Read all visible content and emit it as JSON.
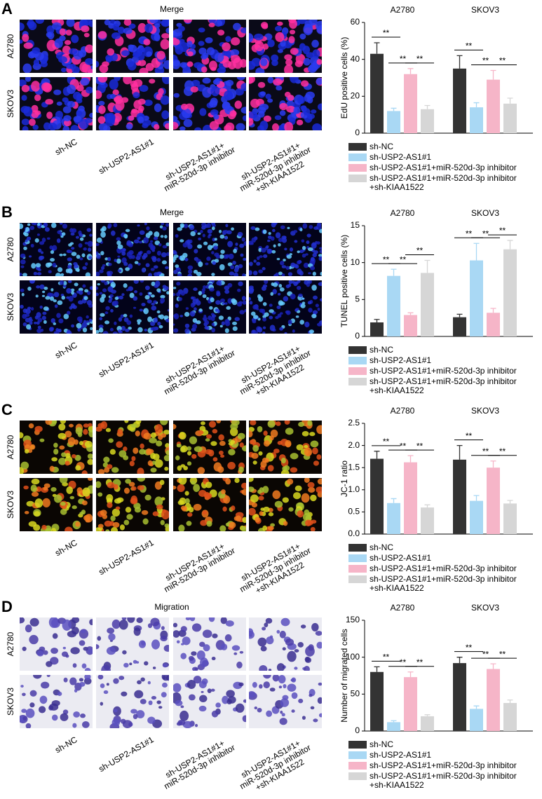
{
  "panels": [
    {
      "label": "A",
      "title": "Merge",
      "rows": [
        "A2780",
        "SKOV3"
      ],
      "columns": [
        "sh-NC",
        "sh-USP2-AS1#1",
        "sh-USP2-AS1#1+\nmiR-520d-3p inhibitor",
        "sh-USP2-AS1#1+\nmiR-520d-3p inhibitor\n+sh-KIAA1522"
      ]
    },
    {
      "label": "B",
      "title": "Merge",
      "rows": [
        "A2780",
        "SKOV3"
      ],
      "columns": [
        "sh-NC",
        "sh-USP2-AS1#1",
        "sh-USP2-AS1#1+\nmiR-520d-3p inhibitor",
        "sh-USP2-AS1#1+\nmiR-520d-3p inhibitor\n+sh-KIAA1522"
      ]
    },
    {
      "label": "C",
      "rows": [
        "A2780",
        "SKOV3"
      ],
      "columns": [
        "sh-NC",
        "sh-USP2-AS1#1",
        "sh-USP2-AS1#1+\nmiR-520d-3p inhibitor",
        "sh-USP2-AS1#1+\nmiR-520d-3p inhibitor\n+sh-KIAA1522"
      ]
    },
    {
      "label": "D",
      "title": "Migration",
      "rows": [
        "A2780",
        "SKOV3"
      ],
      "columns": [
        "sh-NC",
        "sh-USP2-AS1#1",
        "sh-USP2-AS1#1+\nmiR-520d-3p inhibitor",
        "sh-USP2-AS1#1+\nmiR-520d-3p inhibitor\n+sh-KIAA1522"
      ]
    }
  ],
  "chart_data": [
    {
      "type": "bar",
      "y_label": "EdU positive cells (%)",
      "categories": [
        "A2780",
        "SKOV3"
      ],
      "ylim": [
        0,
        60
      ],
      "yticks": [
        0,
        20,
        40,
        60
      ],
      "series": [
        {
          "name": "sh-NC",
          "color": "#333333",
          "values": [
            43,
            35
          ],
          "errors": [
            6,
            7
          ]
        },
        {
          "name": "sh-USP2-AS1#1",
          "color": "#a9d8f4",
          "values": [
            12,
            14
          ],
          "errors": [
            1.5,
            2.5
          ]
        },
        {
          "name": "sh-USP2-AS1#1+miR-520d-3p inhibitor",
          "color": "#f6b5c8",
          "values": [
            32,
            29
          ],
          "errors": [
            3,
            5
          ]
        },
        {
          "name": "sh-USP2-AS1#1+miR-520d-3p inhibitor\n+sh-KIAA1522",
          "color": "#d6d6d6",
          "values": [
            13,
            16
          ],
          "errors": [
            2,
            3
          ]
        }
      ],
      "brackets": [
        {
          "category": 0,
          "series": [
            0,
            1
          ],
          "label": "**"
        },
        {
          "category": 0,
          "series": [
            1,
            2
          ],
          "label": "**"
        },
        {
          "category": 0,
          "series": [
            2,
            3
          ],
          "label": "**"
        },
        {
          "category": 1,
          "series": [
            0,
            1
          ],
          "label": "**"
        },
        {
          "category": 1,
          "series": [
            1,
            2
          ],
          "label": "**"
        },
        {
          "category": 1,
          "series": [
            2,
            3
          ],
          "label": "**"
        }
      ]
    },
    {
      "type": "bar",
      "y_label": "TUNEL positive cells (%)",
      "categories": [
        "A2780",
        "SKOV3"
      ],
      "ylim": [
        0,
        15
      ],
      "yticks": [
        0,
        5,
        10,
        15
      ],
      "series": [
        {
          "name": "sh-NC",
          "color": "#333333",
          "values": [
            1.9,
            2.6
          ],
          "errors": [
            0.4,
            0.4
          ]
        },
        {
          "name": "sh-USP2-AS1#1",
          "color": "#a9d8f4",
          "values": [
            8.2,
            10.3
          ],
          "errors": [
            0.9,
            2.3
          ]
        },
        {
          "name": "sh-USP2-AS1#1+miR-520d-3p inhibitor",
          "color": "#f6b5c8",
          "values": [
            2.9,
            3.2
          ],
          "errors": [
            0.3,
            0.6
          ]
        },
        {
          "name": "sh-USP2-AS1#1+miR-520d-3p inhibitor\n+sh-KIAA1522",
          "color": "#d6d6d6",
          "values": [
            8.6,
            11.8
          ],
          "errors": [
            1.7,
            1.2
          ]
        }
      ],
      "brackets": [
        {
          "category": 0,
          "series": [
            0,
            1
          ],
          "label": "**"
        },
        {
          "category": 0,
          "series": [
            1,
            2
          ],
          "label": "**"
        },
        {
          "category": 0,
          "series": [
            2,
            3
          ],
          "label": "**"
        },
        {
          "category": 1,
          "series": [
            0,
            1
          ],
          "label": "**"
        },
        {
          "category": 1,
          "series": [
            1,
            2
          ],
          "label": "**"
        },
        {
          "category": 1,
          "series": [
            2,
            3
          ],
          "label": "**"
        }
      ]
    },
    {
      "type": "bar",
      "y_label": "JC-1 ratio",
      "categories": [
        "A2780",
        "SKOV3"
      ],
      "ylim": [
        0,
        2.5
      ],
      "yticks": [
        {
          "value": 0,
          "label": "0.0"
        },
        0.5,
        {
          "value": 1,
          "label": "1.0"
        },
        1.5,
        {
          "value": 2,
          "label": "2.0"
        },
        2.5
      ],
      "series": [
        {
          "name": "sh-NC",
          "color": "#333333",
          "values": [
            1.7,
            1.68
          ],
          "errors": [
            0.17,
            0.32
          ]
        },
        {
          "name": "sh-USP2-AS1#1",
          "color": "#a9d8f4",
          "values": [
            0.7,
            0.75
          ],
          "errors": [
            0.1,
            0.12
          ]
        },
        {
          "name": "sh-USP2-AS1#1+miR-520d-3p inhibitor",
          "color": "#f6b5c8",
          "values": [
            1.62,
            1.5
          ],
          "errors": [
            0.15,
            0.15
          ]
        },
        {
          "name": "sh-USP2-AS1#1+miR-520d-3p inhibitor\n+sh-KIAA1522",
          "color": "#d6d6d6",
          "values": [
            0.6,
            0.69
          ],
          "errors": [
            0.06,
            0.07
          ]
        }
      ],
      "brackets": [
        {
          "category": 0,
          "series": [
            0,
            1
          ],
          "label": "**"
        },
        {
          "category": 0,
          "series": [
            1,
            2
          ],
          "label": "**"
        },
        {
          "category": 0,
          "series": [
            2,
            3
          ],
          "label": "**"
        },
        {
          "category": 1,
          "series": [
            0,
            1
          ],
          "label": "**"
        },
        {
          "category": 1,
          "series": [
            1,
            2
          ],
          "label": "**"
        },
        {
          "category": 1,
          "series": [
            2,
            3
          ],
          "label": "**"
        }
      ]
    },
    {
      "type": "bar",
      "y_label": "Number of migrated cells",
      "categories": [
        "A2780",
        "SKOV3"
      ],
      "ylim": [
        0,
        150
      ],
      "yticks": [
        0,
        50,
        100,
        150
      ],
      "series": [
        {
          "name": "sh-NC",
          "color": "#333333",
          "values": [
            80,
            92
          ],
          "errors": [
            7,
            8
          ]
        },
        {
          "name": "sh-USP2-AS1#1",
          "color": "#a9d8f4",
          "values": [
            12,
            30
          ],
          "errors": [
            2,
            4
          ]
        },
        {
          "name": "sh-USP2-AS1#1+miR-520d-3p inhibitor",
          "color": "#f6b5c8",
          "values": [
            73,
            84
          ],
          "errors": [
            7,
            7
          ]
        },
        {
          "name": "sh-USP2-AS1#1+miR-520d-3p inhibitor\n+sh-KIAA1522",
          "color": "#d6d6d6",
          "values": [
            20,
            38
          ],
          "errors": [
            2,
            4
          ]
        }
      ],
      "brackets": [
        {
          "category": 0,
          "series": [
            0,
            1
          ],
          "label": "**"
        },
        {
          "category": 0,
          "series": [
            1,
            2
          ],
          "label": "**"
        },
        {
          "category": 0,
          "series": [
            2,
            3
          ],
          "label": "**"
        },
        {
          "category": 1,
          "series": [
            0,
            1
          ],
          "label": "**"
        },
        {
          "category": 1,
          "series": [
            1,
            2
          ],
          "label": "**"
        },
        {
          "category": 1,
          "series": [
            2,
            3
          ],
          "label": "**"
        }
      ]
    }
  ]
}
